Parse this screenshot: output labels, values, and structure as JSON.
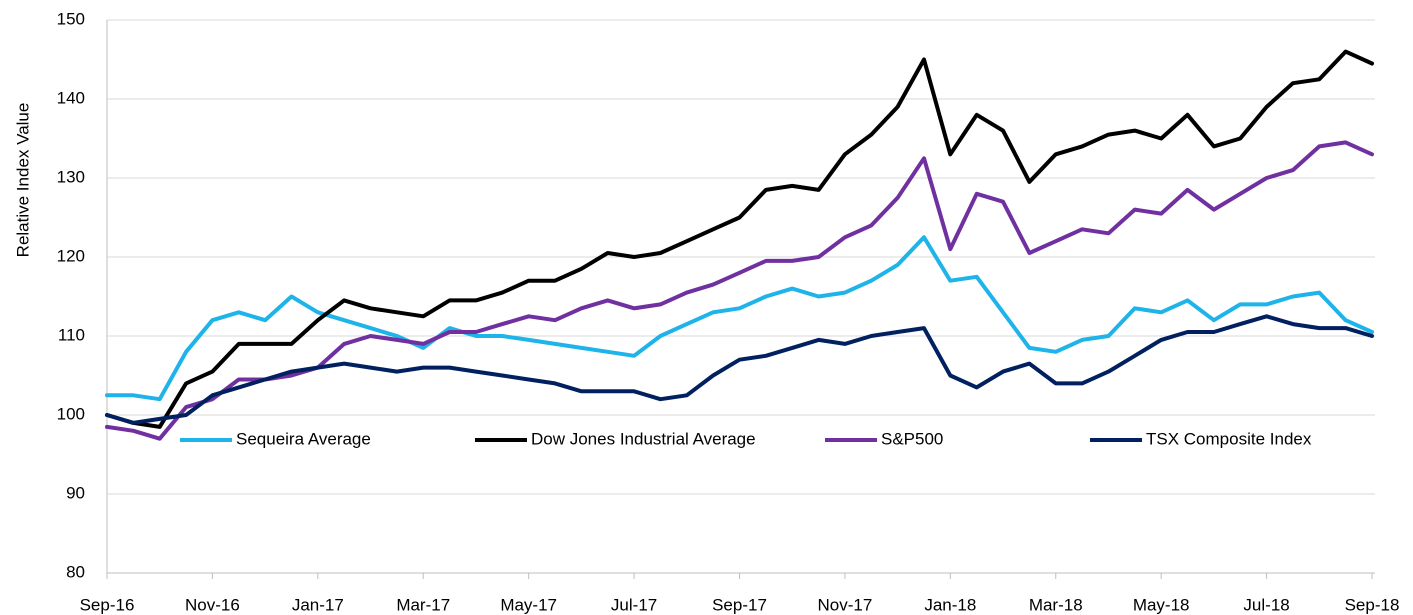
{
  "chart_data": {
    "type": "line",
    "y_label": "Relative Index Value",
    "categories": [
      "Sep-16",
      null,
      null,
      null,
      "Nov-16",
      null,
      null,
      null,
      "Jan-17",
      null,
      null,
      null,
      "Mar-17",
      null,
      null,
      null,
      "May-17",
      null,
      null,
      null,
      "Jul-17",
      null,
      null,
      null,
      "Sep-17",
      null,
      null,
      null,
      "Nov-17",
      null,
      null,
      null,
      "Jan-18",
      null,
      null,
      null,
      "Mar-18",
      null,
      null,
      null,
      "May-18",
      null,
      null,
      null,
      "Jul-18",
      null,
      null,
      null,
      "Sep-18"
    ],
    "series": [
      {
        "name": "Sequeira Average",
        "color": "#1eb4ea",
        "values": [
          102.5,
          102.5,
          102,
          108,
          112,
          113,
          112,
          115,
          113,
          112,
          111,
          110,
          108.5,
          111,
          110,
          110,
          109.5,
          109,
          108.5,
          108,
          107.5,
          110,
          111.5,
          113,
          113.5,
          115,
          116,
          115,
          115.5,
          117,
          119,
          122.5,
          117,
          117.5,
          113,
          108.5,
          108,
          109.5,
          110,
          113.5,
          113,
          114.5,
          112,
          114,
          114,
          115,
          115.5,
          112,
          110.5
        ]
      },
      {
        "name": "Dow Jones Industrial Average",
        "color": "#000000",
        "values": [
          100,
          99,
          98.5,
          104,
          105.5,
          109,
          109,
          109,
          112,
          114.5,
          113.5,
          113,
          112.5,
          114.5,
          114.5,
          115.5,
          117,
          117,
          118.5,
          120.5,
          120,
          120.5,
          122,
          123.5,
          125,
          128.5,
          129,
          128.5,
          133,
          135.5,
          139,
          145,
          133,
          138,
          136,
          129.5,
          133,
          134,
          135.5,
          136,
          135,
          138,
          134,
          135,
          139,
          142,
          142.5,
          146,
          144.5
        ]
      },
      {
        "name": "S&P500",
        "color": "#7030a0",
        "values": [
          98.5,
          98,
          97,
          101,
          102,
          104.5,
          104.5,
          105,
          106,
          109,
          110,
          109.5,
          109,
          110.5,
          110.5,
          111.5,
          112.5,
          112,
          113.5,
          114.5,
          113.5,
          114,
          115.5,
          116.5,
          118,
          119.5,
          119.5,
          120,
          122.5,
          124,
          127.5,
          132.5,
          121,
          128,
          127,
          120.5,
          122,
          123.5,
          123,
          126,
          125.5,
          128.5,
          126,
          128,
          130,
          131,
          134,
          134.5,
          133
        ]
      },
      {
        "name": "TSX Composite Index",
        "color": "#002060",
        "values": [
          100,
          99,
          99.5,
          100,
          102.5,
          103.5,
          104.5,
          105.5,
          106,
          106.5,
          106,
          105.5,
          106,
          106,
          105.5,
          105,
          104.5,
          104,
          103,
          103,
          103,
          102,
          102.5,
          105,
          107,
          107.5,
          108.5,
          109.5,
          109,
          110,
          110.5,
          111,
          105,
          103.5,
          105.5,
          106.5,
          104,
          104,
          105.5,
          107.5,
          109.5,
          110.5,
          110.5,
          111.5,
          112.5,
          111.5,
          111,
          111,
          110
        ]
      }
    ],
    "ylim": [
      80,
      150
    ],
    "yticks": [
      80,
      90,
      100,
      110,
      120,
      130,
      140,
      150
    ],
    "grid": true,
    "legend": "lower center"
  }
}
